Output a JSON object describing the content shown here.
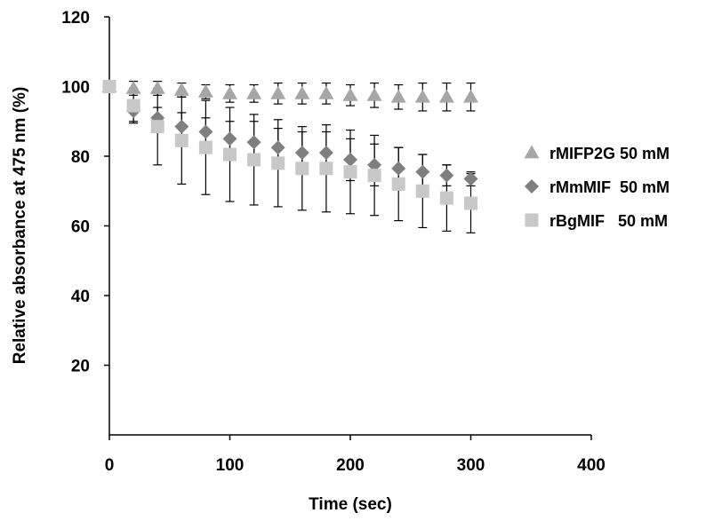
{
  "chart_data": {
    "type": "scatter",
    "xlabel": "Time (sec)",
    "ylabel": "Relative absorbance at 475 nm (%)",
    "xlim": [
      0,
      400
    ],
    "ylim": [
      0,
      120
    ],
    "xticks": [
      "0",
      "100",
      "200",
      "300",
      "400"
    ],
    "yticks": [
      "20",
      "40",
      "60",
      "80",
      "100",
      "120"
    ],
    "grid": false,
    "legend_position": "right",
    "x": [
      0,
      20,
      40,
      60,
      80,
      100,
      120,
      140,
      160,
      180,
      200,
      220,
      240,
      260,
      280,
      300
    ],
    "series": [
      {
        "name": "rMIFP2G 50 mM",
        "marker": "triangle",
        "color": "#a6a6a6",
        "values": [
          100,
          99.5,
          99.5,
          99,
          98.5,
          98,
          98,
          98,
          98,
          98,
          97.5,
          97.5,
          97,
          97,
          97,
          97
        ],
        "error": [
          0,
          2,
          2,
          2,
          2,
          2.5,
          2.5,
          3,
          3,
          3,
          3,
          3.5,
          3.5,
          4,
          4,
          4
        ]
      },
      {
        "name": "rMmMIF  50 mM",
        "marker": "diamond",
        "color": "#7f7f7f",
        "values": [
          100,
          93,
          91,
          88.5,
          87,
          85,
          84,
          82.5,
          81,
          81,
          79,
          77.5,
          76.5,
          75.5,
          74.5,
          73.5
        ],
        "error": [
          0,
          3,
          3,
          4,
          4,
          5,
          6,
          5.5,
          6,
          6,
          6,
          6,
          6,
          5,
          3,
          2
        ]
      },
      {
        "name": "rBgMIF   50 mM",
        "marker": "square",
        "color": "#c8c8c8",
        "values": [
          100,
          94.5,
          88.5,
          84.5,
          82.5,
          80.5,
          79,
          78,
          76.5,
          76.5,
          75.5,
          74.5,
          72,
          70,
          68,
          66.5
        ],
        "error": [
          0,
          5,
          11,
          12.5,
          13.5,
          13.5,
          13,
          12.5,
          12,
          12.5,
          12,
          11.5,
          10.5,
          10.5,
          9.5,
          8.5
        ]
      }
    ]
  }
}
